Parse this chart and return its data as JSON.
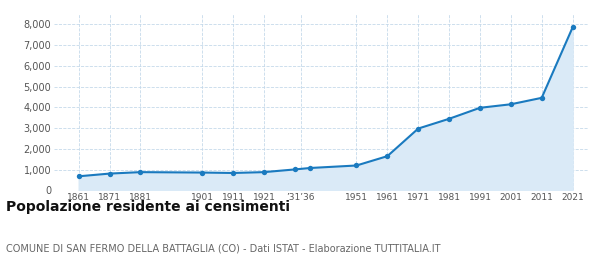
{
  "years": [
    1861,
    1871,
    1881,
    1901,
    1911,
    1921,
    1931,
    1936,
    1951,
    1961,
    1971,
    1981,
    1991,
    2001,
    2011,
    2021
  ],
  "population": [
    680,
    810,
    880,
    860,
    840,
    880,
    1010,
    1080,
    1200,
    1650,
    2980,
    3450,
    3980,
    4150,
    4460,
    7850
  ],
  "ylim": [
    0,
    8500
  ],
  "yticks": [
    0,
    1000,
    2000,
    3000,
    4000,
    5000,
    6000,
    7000,
    8000
  ],
  "line_color": "#1a7abf",
  "fill_color": "#daeaf7",
  "marker_color": "#1a7abf",
  "grid_color": "#c5d9ea",
  "bg_color": "#ffffff",
  "title": "Popolazione residente ai censimenti",
  "subtitle": "COMUNE DI SAN FERMO DELLA BATTAGLIA (CO) - Dati ISTAT - Elaborazione TUTTITALIA.IT",
  "title_fontsize": 10,
  "subtitle_fontsize": 7,
  "xtick_positions": [
    1861,
    1871,
    1881,
    1901,
    1911,
    1921,
    1933,
    1951,
    1961,
    1971,
    1981,
    1991,
    2001,
    2011,
    2021
  ],
  "xtick_labels": [
    "1861",
    "1871",
    "1881",
    "1901",
    "1911",
    "1921",
    "’31’36",
    "1951",
    "1961",
    "1971",
    "1981",
    "1991",
    "2001",
    "2011",
    "2021"
  ],
  "xlim": [
    1853,
    2026
  ]
}
